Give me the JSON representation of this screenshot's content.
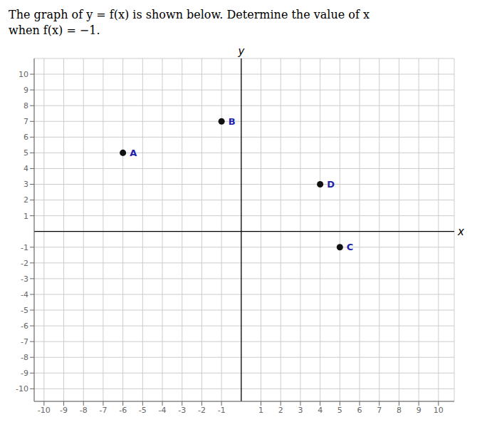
{
  "chart_data": {
    "type": "scatter",
    "title": "The graph of y = f(x) is shown below. Determine the value of x",
    "subtitle": "when f(x) = −1.",
    "xlabel": "x",
    "ylabel": "y",
    "x": [
      -6,
      -1,
      5,
      4
    ],
    "values": [
      5,
      7,
      -1,
      3
    ],
    "labels": [
      "A",
      "B",
      "C",
      "D"
    ],
    "color": "#111111",
    "xlim": [
      -10.5,
      10.8
    ],
    "ylim": [
      -10.8,
      11.0
    ],
    "xticks": [
      -10,
      -9,
      -8,
      -7,
      -6,
      -5,
      -4,
      -3,
      -2,
      -1,
      1,
      2,
      3,
      4,
      5,
      6,
      7,
      8,
      9,
      10
    ],
    "yticks": [
      -10,
      -9,
      -8,
      -7,
      -6,
      -5,
      -4,
      -3,
      -2,
      -1,
      1,
      2,
      3,
      4,
      5,
      6,
      7,
      8,
      9,
      10
    ],
    "grid": true
  }
}
